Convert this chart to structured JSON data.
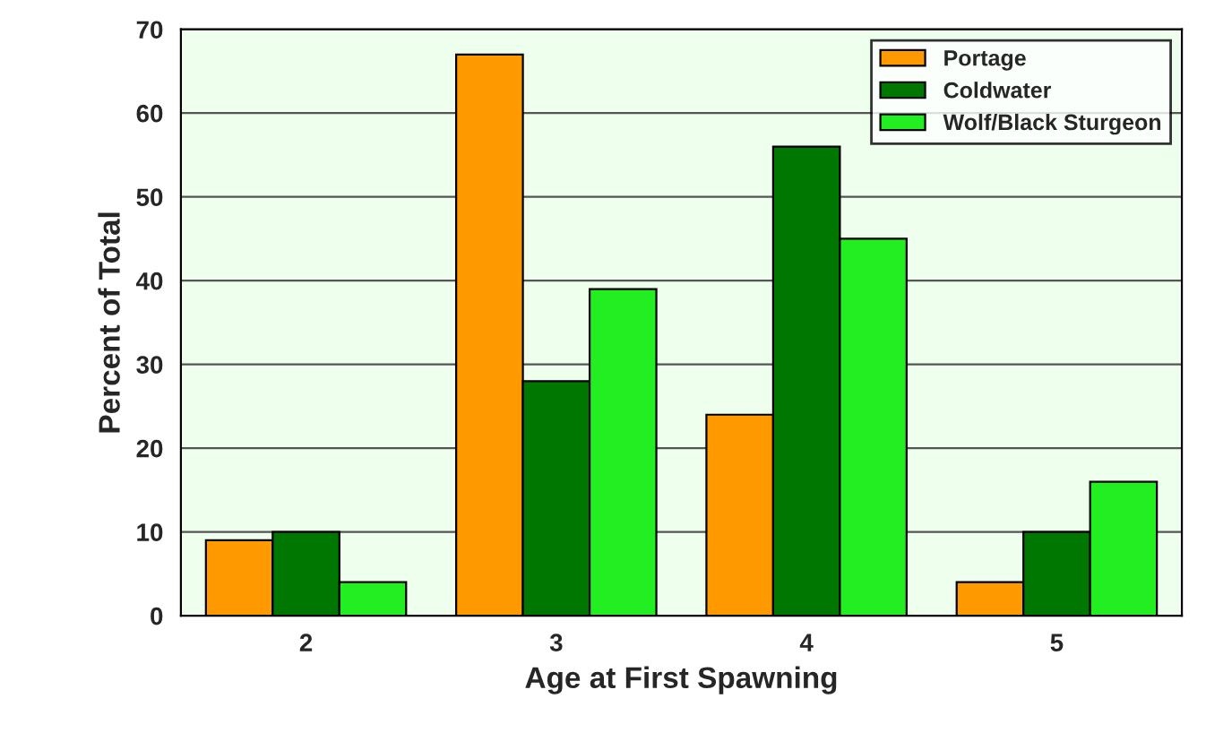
{
  "chart_data": {
    "type": "bar",
    "xlabel": "Age at First Spawning",
    "ylabel": "Percent of Total",
    "categories": [
      "2",
      "3",
      "4",
      "5"
    ],
    "series": [
      {
        "name": "Portage",
        "color": "#ff9900",
        "values": [
          9,
          67,
          24,
          4
        ]
      },
      {
        "name": "Coldwater",
        "color": "#007700",
        "values": [
          10,
          28,
          56,
          10
        ]
      },
      {
        "name": "Wolf/Black Sturgeon",
        "color": "#22ee22",
        "values": [
          4,
          39,
          45,
          16
        ]
      }
    ],
    "ylim": [
      0,
      70
    ],
    "yticks": [
      0,
      10,
      20,
      30,
      40,
      50,
      60,
      70
    ],
    "grid": "y",
    "legend": "top right"
  }
}
